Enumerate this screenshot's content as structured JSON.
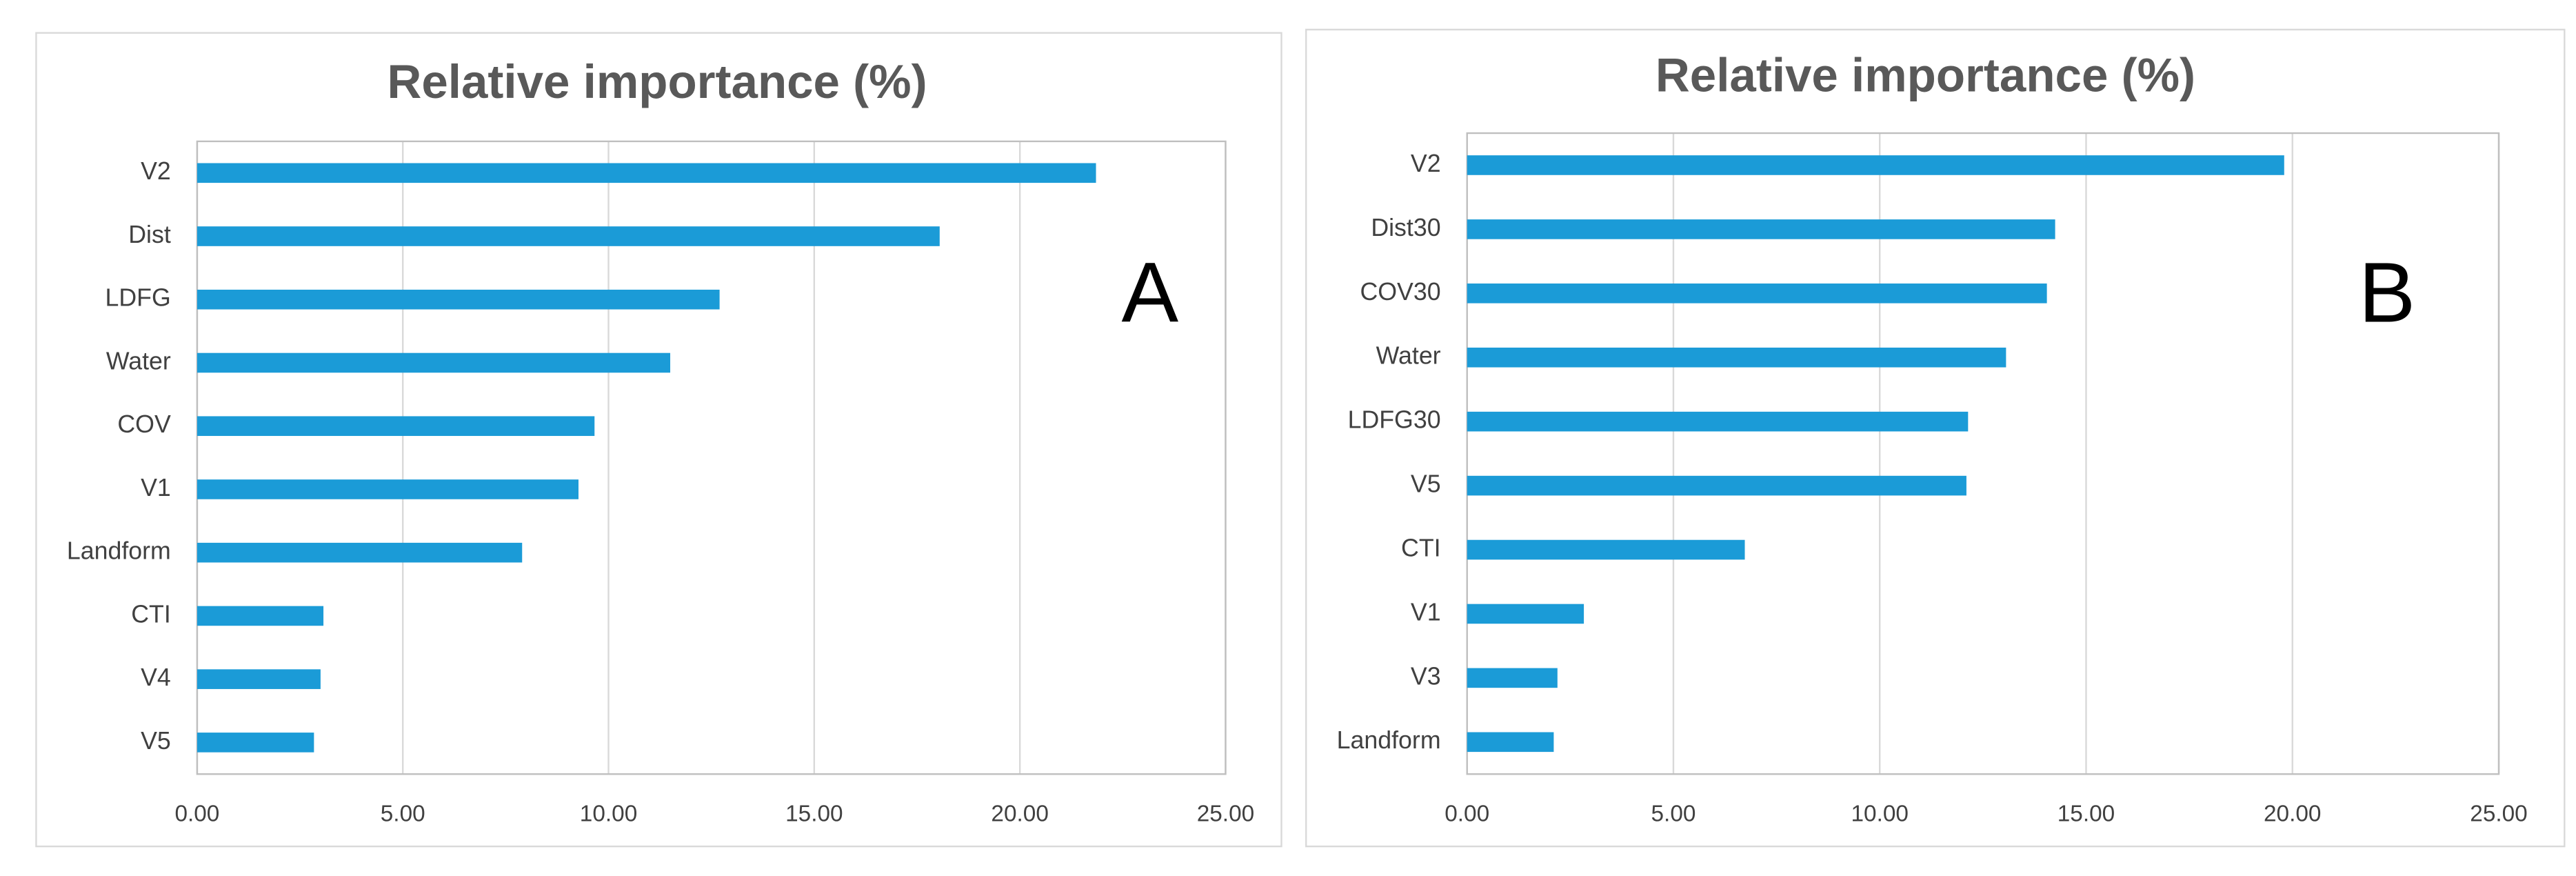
{
  "chart_data": [
    {
      "type": "bar",
      "orientation": "horizontal",
      "title": "Relative importance (%)",
      "annotation": "A",
      "categories": [
        "V2",
        "Dist",
        "LDFG",
        "Water",
        "COV",
        "V1",
        "Landform",
        "CTI",
        "V4",
        "V5"
      ],
      "values": [
        21.85,
        18.05,
        12.7,
        11.5,
        9.66,
        9.27,
        7.9,
        3.07,
        3.0,
        2.84
      ],
      "color": "#1b9bd7",
      "xlim": [
        0,
        25
      ],
      "xticks": [
        {
          "value": 0,
          "label": "0.00"
        },
        {
          "value": 5,
          "label": "5.00"
        },
        {
          "value": 10,
          "label": "10.00"
        },
        {
          "value": 15,
          "label": "15.00"
        },
        {
          "value": 20,
          "label": "20.00"
        },
        {
          "value": 25,
          "label": "25.00"
        }
      ],
      "grid": true
    },
    {
      "type": "bar",
      "orientation": "horizontal",
      "title": "Relative importance (%)",
      "annotation": "B",
      "categories": [
        "V2",
        "Dist30",
        "COV30",
        "Water",
        "LDFG30",
        "V5",
        "CTI",
        "V1",
        "V3",
        "Landform"
      ],
      "values": [
        19.8,
        14.25,
        14.05,
        13.06,
        12.14,
        12.1,
        6.73,
        2.83,
        2.19,
        2.1
      ],
      "color": "#1b9bd7",
      "xlim": [
        0,
        25
      ],
      "xticks": [
        {
          "value": 0,
          "label": "0.00"
        },
        {
          "value": 5,
          "label": "5.00"
        },
        {
          "value": 10,
          "label": "10.00"
        },
        {
          "value": 15,
          "label": "15.00"
        },
        {
          "value": 20,
          "label": "20.00"
        },
        {
          "value": 25,
          "label": "25.00"
        }
      ],
      "grid": true
    }
  ]
}
